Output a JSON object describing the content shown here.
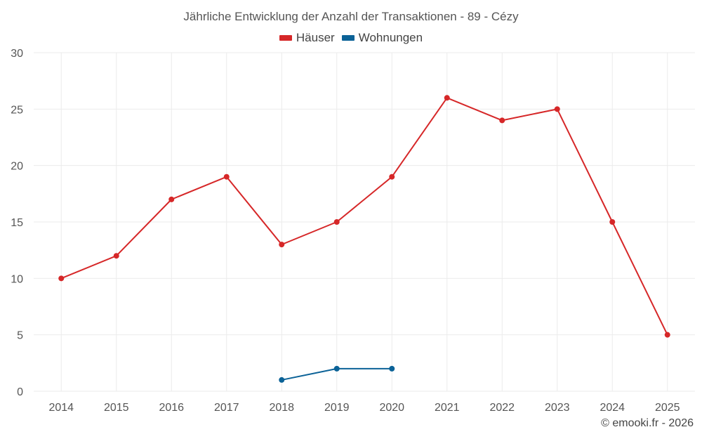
{
  "chart_data": {
    "type": "line",
    "title": "Jährliche Entwicklung der Anzahl der Transaktionen - 89 - Cézy",
    "categories": [
      "2014",
      "2015",
      "2016",
      "2017",
      "2018",
      "2019",
      "2020",
      "2021",
      "2022",
      "2023",
      "2024",
      "2025"
    ],
    "yticks": [
      "0",
      "5",
      "10",
      "15",
      "20",
      "25",
      "30"
    ],
    "ylim": [
      0,
      30
    ],
    "series": [
      {
        "name": "Häuser",
        "color": "#d62728",
        "values": [
          10,
          12,
          17,
          19,
          13,
          15,
          19,
          26,
          24,
          25,
          15,
          5
        ]
      },
      {
        "name": "Wohnungen",
        "color": "#0b6297",
        "values": [
          null,
          null,
          null,
          null,
          1,
          2,
          2,
          null,
          null,
          null,
          null,
          null
        ]
      }
    ],
    "xlabel": "",
    "ylabel": "",
    "grid": true,
    "legend": "top-center"
  },
  "credit": "© emooki.fr - 2026"
}
